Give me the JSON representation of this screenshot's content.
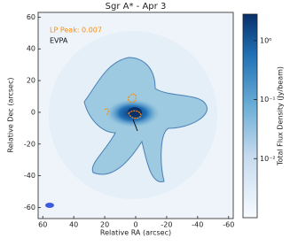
{
  "chart_data": {
    "type": "image",
    "title": "Sgr A* - Apr 3",
    "x_label": "Relative RA (arcsec)",
    "y_label": "Relative Dec (arcsec)",
    "colorbar_label": "Total Flux Density (Jy/beam)",
    "annotations": [
      "LP Peak: 0.007",
      "EVPA"
    ],
    "annotation_colors": [
      "#ff8c00",
      "#111111"
    ],
    "xlim": [
      63,
      -63
    ],
    "xticks": [
      60,
      40,
      20,
      0,
      -20,
      -40,
      -60
    ],
    "ylim": [
      -67,
      63
    ],
    "yticks": [
      -60,
      -40,
      -20,
      0,
      20,
      40,
      60
    ],
    "clim": [
      0.001,
      2.8
    ],
    "clog": true,
    "cticks": [
      {
        "value": 1,
        "label": "10⁰"
      },
      {
        "value": 0.1,
        "label": "10⁻¹"
      },
      {
        "value": 0.01,
        "label": "10⁻²"
      }
    ]
  }
}
